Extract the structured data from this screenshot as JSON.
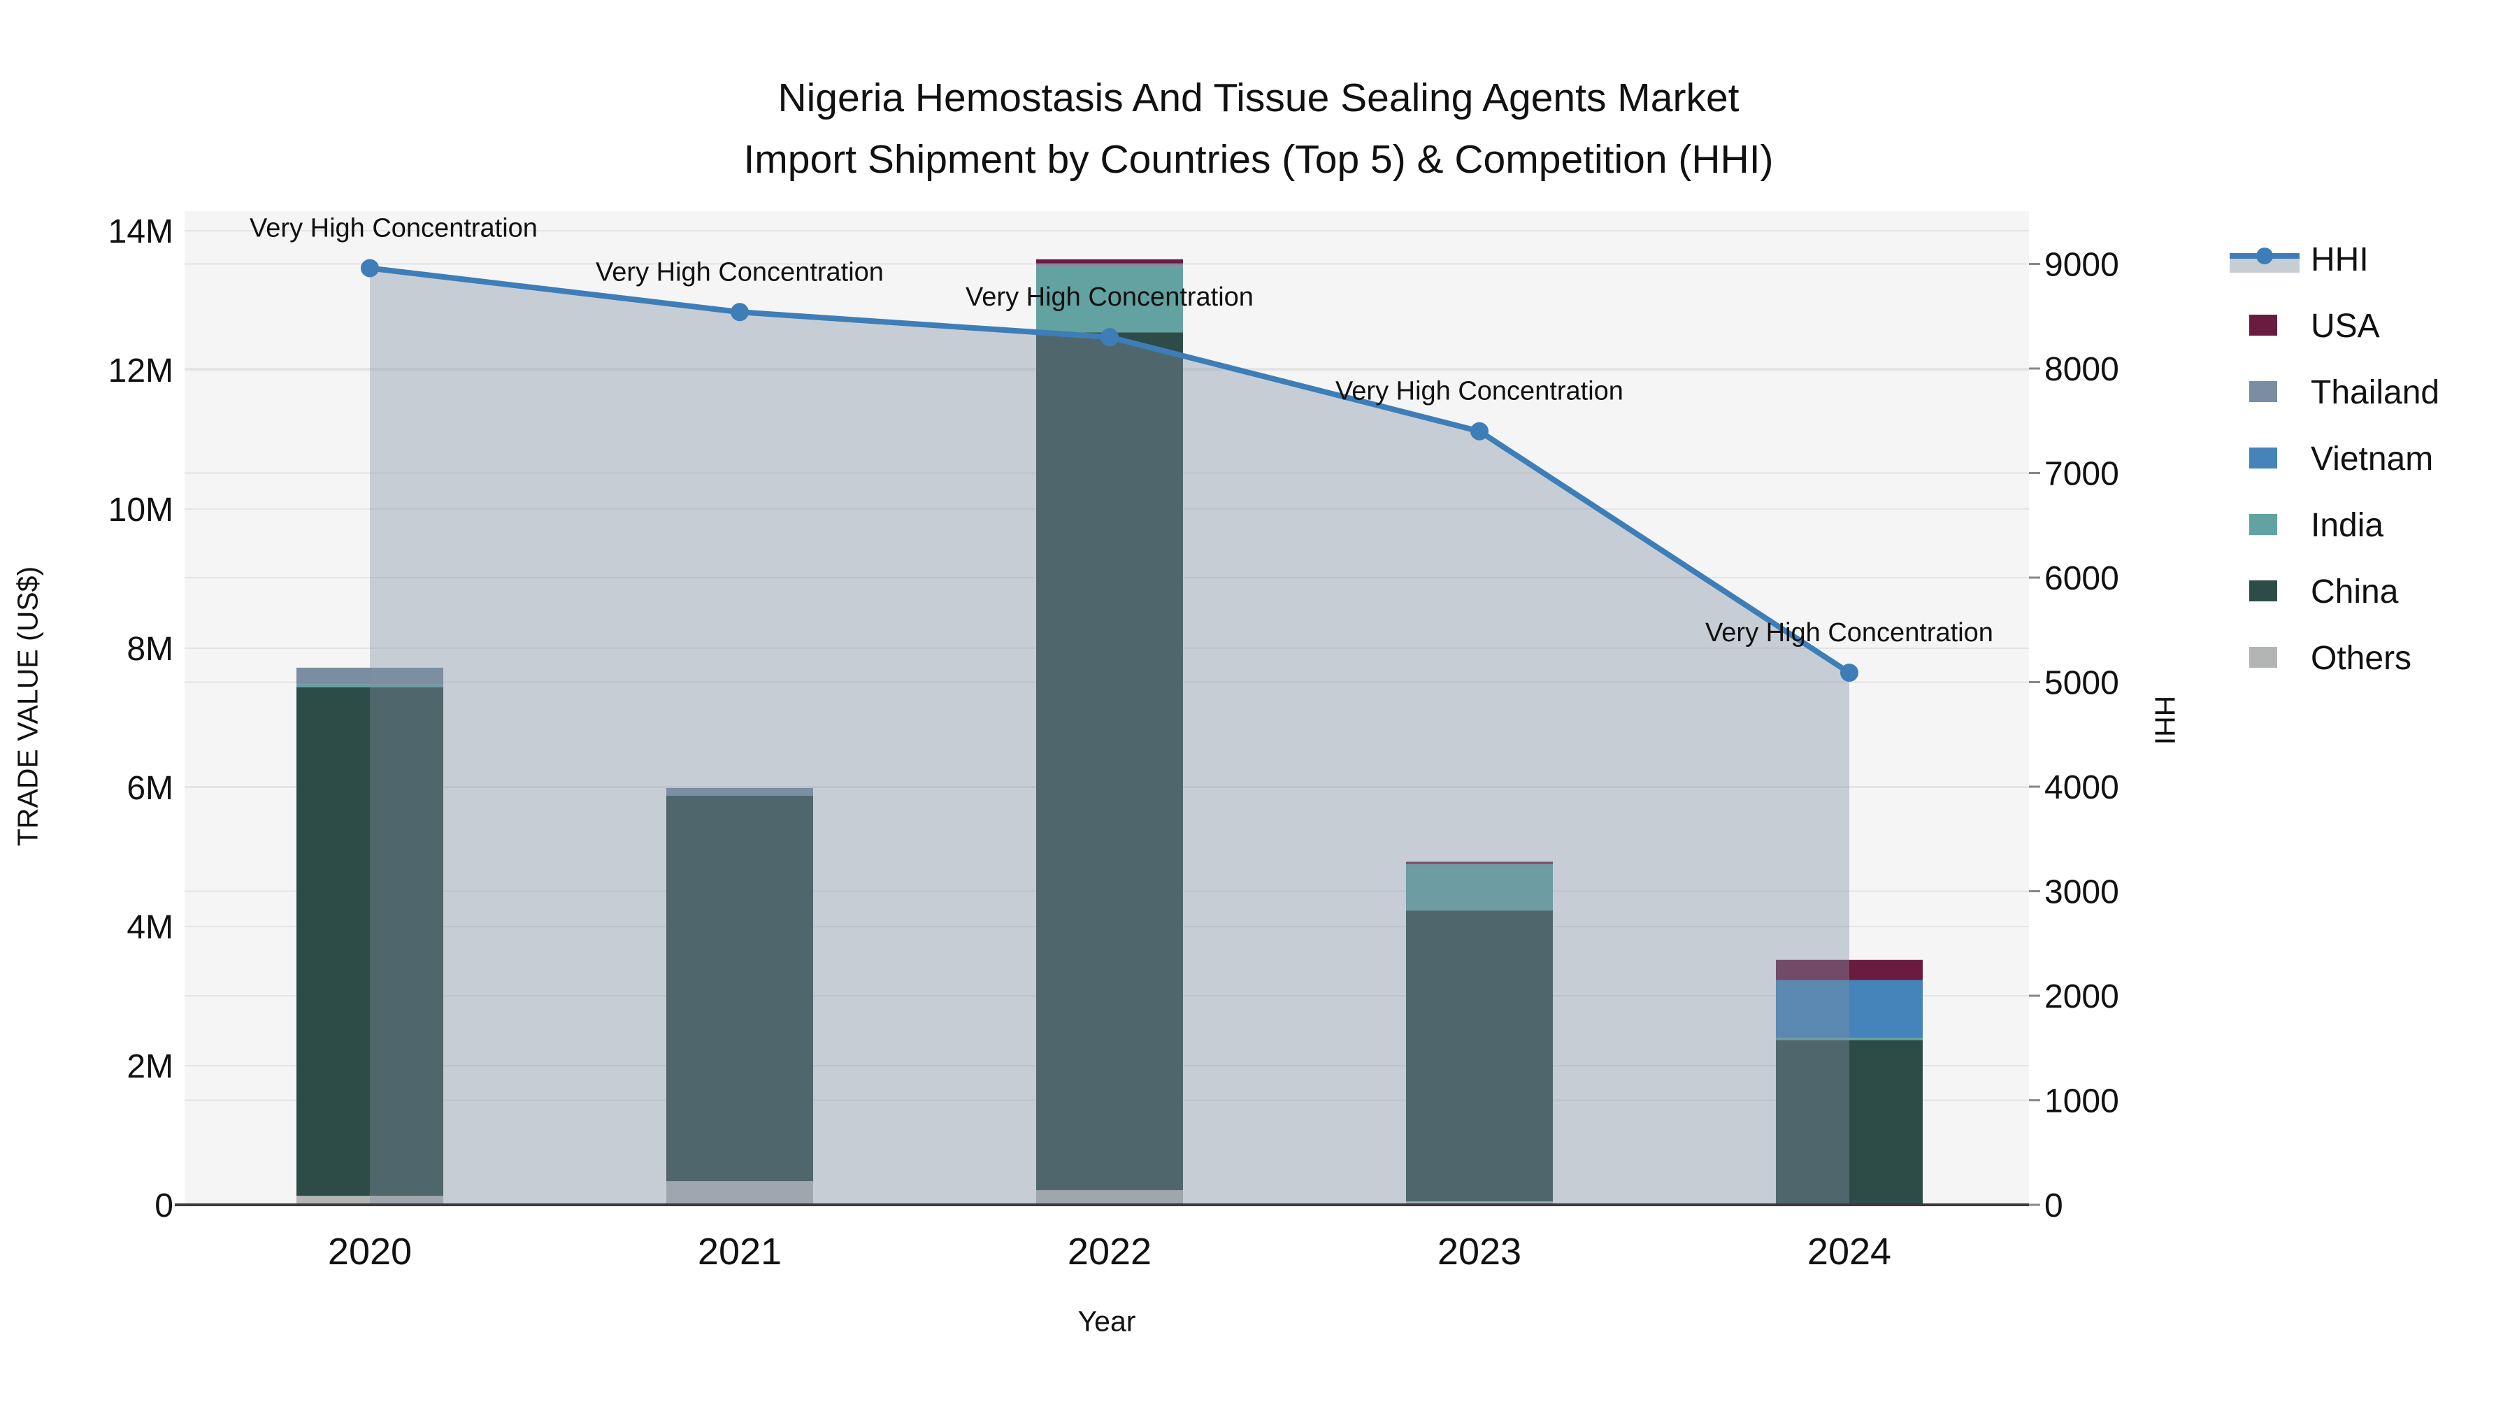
{
  "title": {
    "line1": "Nigeria Hemostasis And Tissue Sealing Agents Market",
    "line2": "Import Shipment by Countries (Top 5) & Competition (HHI)"
  },
  "axes": {
    "y_left": {
      "title": "TRADE VALUE (US$)",
      "tick_labels": [
        "0",
        "2M",
        "4M",
        "6M",
        "8M",
        "10M",
        "12M",
        "14M"
      ],
      "tick_values": [
        0,
        2000000,
        4000000,
        6000000,
        8000000,
        10000000,
        12000000,
        14000000
      ],
      "max": 14000000
    },
    "y_right": {
      "title": "HHI",
      "tick_labels": [
        "0",
        "1000",
        "2000",
        "3000",
        "4000",
        "5000",
        "6000",
        "7000",
        "8000",
        "9000"
      ],
      "tick_values": [
        0,
        1000,
        2000,
        3000,
        4000,
        5000,
        6000,
        7000,
        8000,
        9000
      ],
      "max": 9000
    },
    "x": {
      "title": "Year",
      "categories": [
        "2020",
        "2021",
        "2022",
        "2023",
        "2024"
      ]
    }
  },
  "legend": [
    {
      "label": "HHI",
      "kind": "line",
      "color": "#3d7eb8"
    },
    {
      "label": "USA",
      "kind": "swatch",
      "color": "#691c3e"
    },
    {
      "label": "Thailand",
      "kind": "swatch",
      "color": "#7b8da0"
    },
    {
      "label": "Vietnam",
      "kind": "swatch",
      "color": "#4484ba"
    },
    {
      "label": "India",
      "kind": "swatch",
      "color": "#62a3a2"
    },
    {
      "label": "China",
      "kind": "swatch",
      "color": "#2d4c47"
    },
    {
      "label": "Others",
      "kind": "swatch",
      "color": "#b2b5b3"
    }
  ],
  "annotations": [
    "Very High Concentration",
    "Very High Concentration",
    "Very High Concentration",
    "Very High Concentration",
    "Very High Concentration"
  ],
  "colors": {
    "plot_bg": "#f5f5f5",
    "grid": "#e4e4e4",
    "axis_line": "#3a3a3a",
    "hhi_line": "#3d7eb8",
    "hhi_area": "rgba(130,144,165,0.40)",
    "hhi_legend_band": "#c7cdd5"
  },
  "chart_data": {
    "type": "bar+line",
    "title": "Nigeria Hemostasis And Tissue Sealing Agents Market — Import Shipment by Countries (Top 5) & Competition (HHI)",
    "categories": [
      "2020",
      "2021",
      "2022",
      "2023",
      "2024"
    ],
    "bar_unit": "US$",
    "ylabel_left": "TRADE VALUE (US$)",
    "ylabel_right": "HHI",
    "ylim_left": [
      0,
      14000000
    ],
    "ylim_right": [
      0,
      9000
    ],
    "grid": "on",
    "legend_position": "right",
    "series": [
      {
        "name": "Others",
        "color": "#b2b5b3",
        "values": [
          130000,
          340000,
          210000,
          50000,
          0
        ]
      },
      {
        "name": "China",
        "color": "#2d4c47",
        "values": [
          7310000,
          5540000,
          12330000,
          4180000,
          2370000
        ]
      },
      {
        "name": "India",
        "color": "#62a3a2",
        "values": [
          40000,
          0,
          940000,
          670000,
          30000
        ]
      },
      {
        "name": "Vietnam",
        "color": "#4484ba",
        "values": [
          0,
          0,
          0,
          0,
          830000
        ]
      },
      {
        "name": "Thailand",
        "color": "#7b8da0",
        "values": [
          240000,
          110000,
          50000,
          0,
          0
        ]
      },
      {
        "name": "USA",
        "color": "#691c3e",
        "values": [
          0,
          0,
          60000,
          30000,
          290000
        ]
      }
    ],
    "hhi": {
      "name": "HHI",
      "values": [
        8960,
        8540,
        8300,
        7400,
        5090
      ]
    }
  }
}
